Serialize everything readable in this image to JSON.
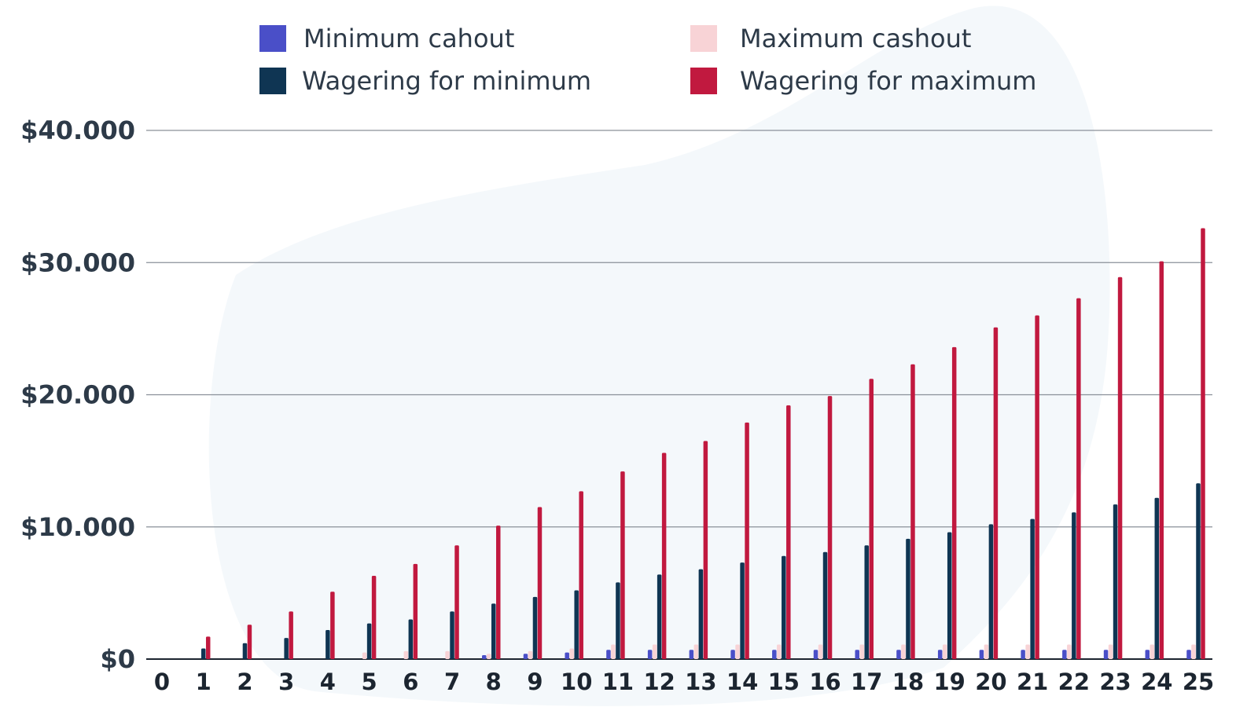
{
  "chart_data": {
    "type": "bar",
    "categories": [
      "0",
      "1",
      "2",
      "3",
      "4",
      "5",
      "6",
      "7",
      "8",
      "9",
      "10",
      "11",
      "12",
      "13",
      "14",
      "15",
      "16",
      "17",
      "18",
      "19",
      "20",
      "21",
      "22",
      "23",
      "24",
      "25"
    ],
    "series": [
      {
        "name": "Minimum cahout",
        "color": "#4a4fc8",
        "values": [
          0,
          0,
          0,
          0,
          0,
          0,
          0,
          0,
          300,
          400,
          500,
          700,
          700,
          700,
          700,
          700,
          700,
          700,
          700,
          700,
          700,
          700,
          700,
          700,
          700,
          700
        ]
      },
      {
        "name": "Maximum cashout",
        "color": "#f8d3d6",
        "values": [
          0,
          0,
          0,
          0,
          0,
          500,
          600,
          600,
          400,
          600,
          800,
          1100,
          1100,
          1100,
          1100,
          1100,
          1100,
          1100,
          1100,
          1100,
          1100,
          1100,
          1100,
          1100,
          1100,
          1100
        ]
      },
      {
        "name": "Wagering for minimum",
        "color": "#0f3553",
        "values": [
          0,
          800,
          1200,
          1600,
          2200,
          2700,
          3000,
          3600,
          4200,
          4700,
          5200,
          5800,
          6400,
          6800,
          7300,
          7800,
          8100,
          8600,
          9100,
          9600,
          10200,
          10600,
          11100,
          11700,
          12200,
          13300
        ]
      },
      {
        "name": "Wagering for maximum",
        "color": "#c1193f",
        "values": [
          0,
          1700,
          2600,
          3600,
          5100,
          6300,
          7200,
          8600,
          10100,
          11500,
          12700,
          14200,
          15600,
          16500,
          17900,
          19200,
          19900,
          21200,
          22300,
          23600,
          25100,
          26000,
          27300,
          28900,
          30100,
          32600
        ]
      }
    ],
    "y_ticks": [
      "$0",
      "$10.000",
      "$20.000",
      "$30.000",
      "$40.000"
    ],
    "y_tick_values": [
      0,
      10000,
      20000,
      30000,
      40000
    ],
    "ylim": [
      0,
      40000
    ],
    "grid": true,
    "legend_position": "top",
    "title": "",
    "xlabel": "",
    "ylabel": ""
  }
}
